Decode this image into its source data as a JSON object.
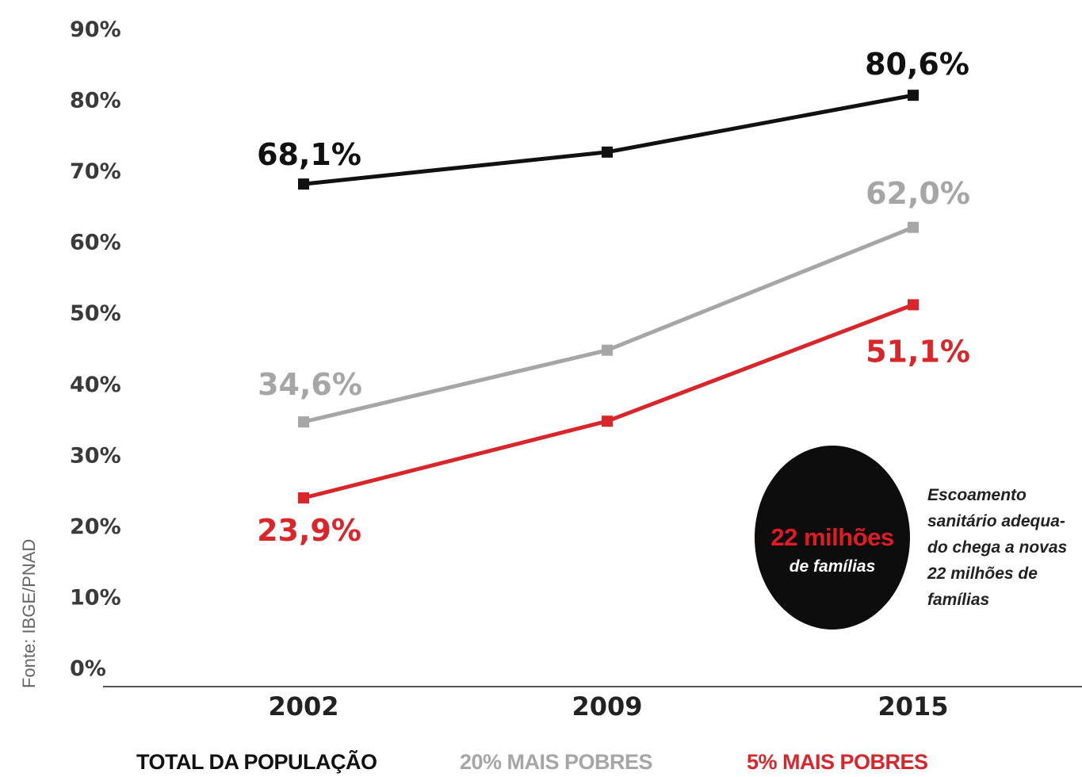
{
  "chart_data": {
    "type": "line",
    "x": [
      "2002",
      "2009",
      "2015"
    ],
    "yticks": [
      "90%",
      "80%",
      "70%",
      "60%",
      "50%",
      "40%",
      "30%",
      "20%",
      "10%",
      "0%"
    ],
    "ylim": [
      0,
      90
    ],
    "series": [
      {
        "name": "TOTAL DA POPULAÇÃO",
        "values": [
          68.1,
          72.6,
          80.6
        ],
        "color": "#111111",
        "labels": [
          "68,1%",
          "",
          "80,6%"
        ]
      },
      {
        "name": "20% MAIS POBRES",
        "values": [
          34.6,
          44.7,
          62.0
        ],
        "color": "#a6a6a6",
        "labels": [
          "34,6%",
          "",
          "62,0%"
        ]
      },
      {
        "name": "5% MAIS POBRES",
        "values": [
          23.9,
          34.7,
          51.1
        ],
        "color": "#d9262b",
        "labels": [
          "23,9%",
          "",
          "51,1%"
        ]
      }
    ],
    "grid": false,
    "legend_position": "bottom",
    "source": "Fonte: IBGE/PNAD",
    "annotation": {
      "badge_big": "22 milhões",
      "badge_small": "de famílias",
      "note": "Escoamento sanitário adequa-do chega a novas 22 milhões de famílias"
    }
  }
}
